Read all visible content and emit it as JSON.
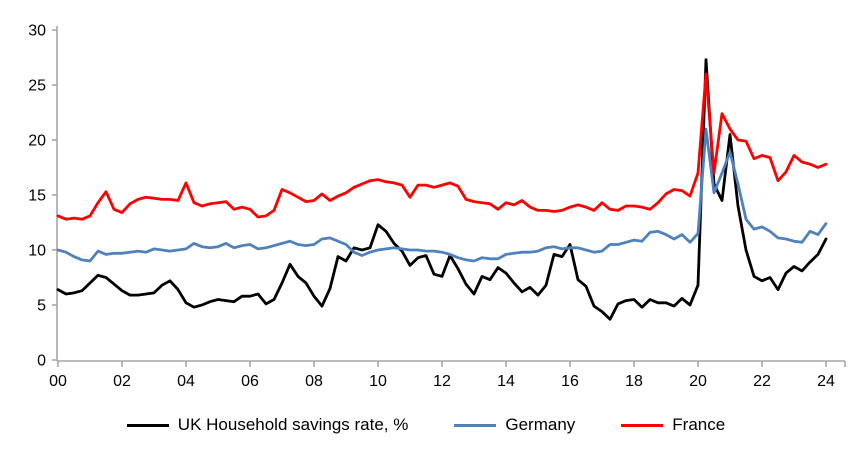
{
  "chart_data": {
    "type": "line",
    "title": "",
    "xlabel": "",
    "ylabel": "",
    "ylim": [
      0,
      30
    ],
    "y_ticks": [
      0,
      5,
      10,
      15,
      20,
      25,
      30
    ],
    "x_start_year": 2000,
    "x_step_years": 0.25,
    "x_tick_labels": [
      "00",
      "02",
      "04",
      "06",
      "08",
      "10",
      "12",
      "14",
      "16",
      "18",
      "20",
      "22",
      "24"
    ],
    "x_tick_interval_years": 2,
    "grid": "off",
    "legend_position": "bottom",
    "axis_color": "#a6a6a6",
    "text_color": "#000000",
    "frequency": "quarterly",
    "series": [
      {
        "name": "UK Household savings rate, %",
        "color": "#000000",
        "values": [
          6.4,
          6.0,
          6.1,
          6.3,
          7.0,
          7.7,
          7.5,
          6.9,
          6.3,
          5.9,
          5.9,
          6.0,
          6.1,
          6.8,
          7.2,
          6.4,
          5.2,
          4.8,
          5.0,
          5.3,
          5.5,
          5.4,
          5.3,
          5.8,
          5.8,
          6.0,
          5.1,
          5.5,
          7.0,
          8.7,
          7.6,
          7.0,
          5.8,
          4.9,
          6.5,
          9.4,
          9.0,
          10.2,
          10.0,
          10.2,
          12.3,
          11.7,
          10.6,
          9.9,
          8.6,
          9.3,
          9.5,
          7.8,
          7.6,
          9.5,
          8.3,
          6.9,
          6.0,
          7.6,
          7.3,
          8.4,
          7.9,
          7.0,
          6.2,
          6.6,
          5.9,
          6.8,
          9.6,
          9.4,
          10.5,
          7.3,
          6.7,
          4.9,
          4.4,
          3.7,
          5.1,
          5.4,
          5.5,
          4.8,
          5.5,
          5.2,
          5.2,
          4.9,
          5.6,
          5.0,
          6.8,
          27.3,
          16.0,
          14.5,
          20.5,
          14.0,
          10.0,
          7.6,
          7.2,
          7.5,
          6.4,
          7.9,
          8.5,
          8.1,
          8.9,
          9.6,
          11.0
        ]
      },
      {
        "name": "Germany",
        "color": "#4f81bd",
        "values": [
          10.0,
          9.8,
          9.4,
          9.1,
          9.0,
          9.9,
          9.6,
          9.7,
          9.7,
          9.8,
          9.9,
          9.8,
          10.1,
          10.0,
          9.9,
          10.0,
          10.1,
          10.6,
          10.3,
          10.2,
          10.3,
          10.6,
          10.2,
          10.4,
          10.5,
          10.1,
          10.2,
          10.4,
          10.6,
          10.8,
          10.5,
          10.4,
          10.5,
          11.0,
          11.1,
          10.8,
          10.5,
          9.8,
          9.5,
          9.8,
          10.0,
          10.1,
          10.2,
          10.1,
          10.0,
          10.0,
          9.9,
          9.9,
          9.8,
          9.6,
          9.3,
          9.1,
          9.0,
          9.3,
          9.2,
          9.2,
          9.6,
          9.7,
          9.8,
          9.8,
          9.9,
          10.2,
          10.3,
          10.1,
          10.2,
          10.2,
          10.0,
          9.8,
          9.9,
          10.5,
          10.5,
          10.7,
          10.9,
          10.8,
          11.6,
          11.7,
          11.4,
          11.0,
          11.4,
          10.7,
          11.5,
          21.0,
          15.2,
          17.0,
          18.9,
          16.0,
          12.8,
          11.9,
          12.1,
          11.7,
          11.1,
          11.0,
          10.8,
          10.7,
          11.7,
          11.4,
          12.4
        ]
      },
      {
        "name": "France",
        "color": "#ff0000",
        "values": [
          13.1,
          12.8,
          12.9,
          12.8,
          13.1,
          14.3,
          15.3,
          13.7,
          13.4,
          14.2,
          14.6,
          14.8,
          14.7,
          14.6,
          14.6,
          14.5,
          16.1,
          14.3,
          14.0,
          14.2,
          14.3,
          14.4,
          13.7,
          13.9,
          13.7,
          13.0,
          13.1,
          13.6,
          15.5,
          15.2,
          14.8,
          14.4,
          14.5,
          15.1,
          14.5,
          14.9,
          15.2,
          15.7,
          16.0,
          16.3,
          16.4,
          16.2,
          16.1,
          15.9,
          14.8,
          15.9,
          15.9,
          15.7,
          15.9,
          16.1,
          15.8,
          14.6,
          14.4,
          14.3,
          14.2,
          13.7,
          14.3,
          14.1,
          14.5,
          13.9,
          13.6,
          13.6,
          13.5,
          13.6,
          13.9,
          14.1,
          13.9,
          13.6,
          14.3,
          13.7,
          13.6,
          14.0,
          14.0,
          13.9,
          13.7,
          14.3,
          15.1,
          15.5,
          15.4,
          14.9,
          17.0,
          26.0,
          17.0,
          22.4,
          21.0,
          20.0,
          19.9,
          18.3,
          18.6,
          18.4,
          16.3,
          17.1,
          18.6,
          18.0,
          17.8,
          17.5,
          17.8
        ]
      }
    ]
  },
  "legend": {
    "items": [
      {
        "label": "UK Household savings rate, %"
      },
      {
        "label": "Germany"
      },
      {
        "label": "France"
      }
    ]
  }
}
